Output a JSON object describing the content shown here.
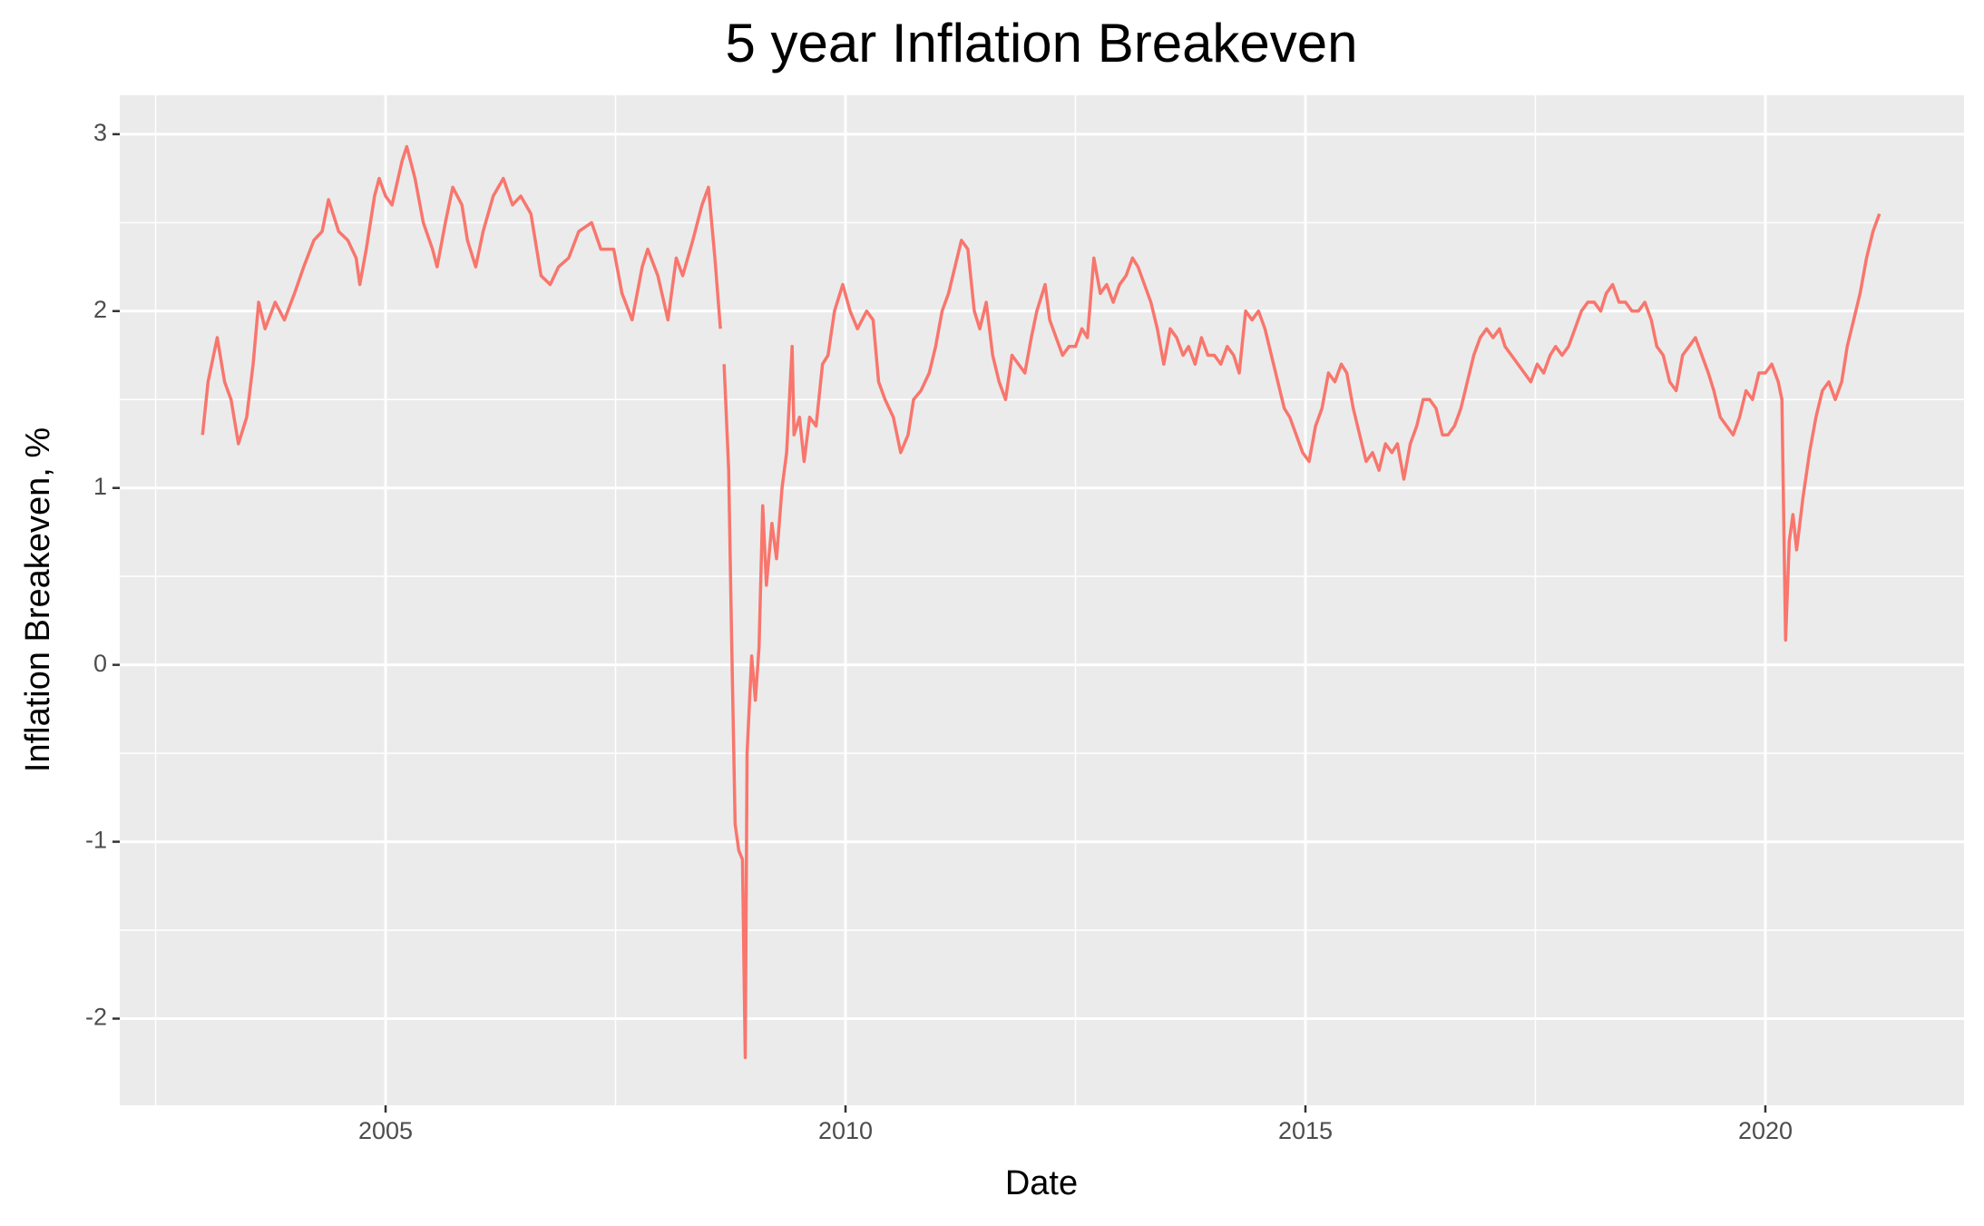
{
  "chart_data": {
    "type": "line",
    "title": "5 year Inflation Breakeven",
    "x_label": "Date",
    "y_label": "Inflation Breakeven, %",
    "color": "#F8766D",
    "grid": true,
    "xlim": [
      2002.11,
      2022.16
    ],
    "xticks": [
      2005,
      2010,
      2015,
      2020
    ],
    "ylim": [
      -2.49,
      3.22
    ],
    "yticks": [
      -2,
      -1,
      0,
      1,
      2,
      3
    ],
    "x": [
      2003.01,
      2003.07,
      2003.17,
      2003.25,
      2003.32,
      2003.4,
      2003.49,
      2003.56,
      2003.62,
      2003.69,
      2003.8,
      2003.9,
      2004.01,
      2004.11,
      2004.22,
      2004.31,
      2004.38,
      2004.49,
      2004.59,
      2004.68,
      2004.72,
      2004.79,
      2004.88,
      2004.93,
      2005.0,
      2005.07,
      2005.18,
      2005.23,
      2005.32,
      2005.41,
      2005.51,
      2005.56,
      2005.65,
      2005.73,
      2005.83,
      2005.89,
      2005.98,
      2006.06,
      2006.17,
      2006.28,
      2006.38,
      2006.47,
      2006.58,
      2006.69,
      2006.79,
      2006.88,
      2006.99,
      2007.1,
      2007.24,
      2007.34,
      2007.48,
      2007.57,
      2007.68,
      2007.79,
      2007.85,
      2007.96,
      2008.07,
      2008.16,
      2008.23,
      2008.34,
      2008.44,
      2008.51,
      2008.58,
      2008.64,
      2008.66,
      2008.68,
      2008.73,
      2008.76,
      2008.8,
      2008.84,
      2008.88,
      2008.91,
      2008.93,
      2008.98,
      2009.02,
      2009.06,
      2009.1,
      2009.14,
      2009.2,
      2009.25,
      2009.31,
      2009.36,
      2009.42,
      2009.44,
      2009.5,
      2009.55,
      2009.61,
      2009.68,
      2009.75,
      2009.81,
      2009.88,
      2009.97,
      2010.05,
      2010.13,
      2010.23,
      2010.3,
      2010.36,
      2010.43,
      2010.52,
      2010.6,
      2010.68,
      2010.74,
      2010.82,
      2010.91,
      2010.98,
      2011.05,
      2011.12,
      2011.19,
      2011.26,
      2011.33,
      2011.4,
      2011.46,
      2011.53,
      2011.6,
      2011.67,
      2011.74,
      2011.81,
      2011.88,
      2011.95,
      2012.02,
      2012.08,
      2012.17,
      2012.22,
      2012.29,
      2012.36,
      2012.43,
      2012.5,
      2012.57,
      2012.63,
      2012.7,
      2012.77,
      2012.84,
      2012.91,
      2012.98,
      2013.05,
      2013.12,
      2013.18,
      2013.25,
      2013.32,
      2013.39,
      2013.46,
      2013.53,
      2013.6,
      2013.67,
      2013.73,
      2013.8,
      2013.87,
      2013.94,
      2014.01,
      2014.08,
      2014.15,
      2014.22,
      2014.28,
      2014.35,
      2014.42,
      2014.49,
      2014.56,
      2014.63,
      2014.7,
      2014.77,
      2014.83,
      2014.9,
      2014.97,
      2015.04,
      2015.11,
      2015.18,
      2015.25,
      2015.32,
      2015.39,
      2015.45,
      2015.52,
      2015.59,
      2015.66,
      2015.73,
      2015.8,
      2015.87,
      2015.94,
      2016.0,
      2016.07,
      2016.14,
      2016.21,
      2016.28,
      2016.35,
      2016.42,
      2016.49,
      2016.55,
      2016.62,
      2016.69,
      2016.76,
      2016.83,
      2016.9,
      2016.97,
      2017.04,
      2017.11,
      2017.17,
      2017.24,
      2017.31,
      2017.38,
      2017.45,
      2017.52,
      2017.59,
      2017.66,
      2017.72,
      2017.79,
      2017.86,
      2017.93,
      2018.0,
      2018.07,
      2018.14,
      2018.21,
      2018.27,
      2018.34,
      2018.41,
      2018.48,
      2018.55,
      2018.62,
      2018.69,
      2018.76,
      2018.82,
      2018.89,
      2018.96,
      2019.03,
      2019.1,
      2019.17,
      2019.24,
      2019.31,
      2019.38,
      2019.44,
      2019.51,
      2019.58,
      2019.65,
      2019.72,
      2019.79,
      2019.86,
      2019.93,
      2020.0,
      2020.07,
      2020.14,
      2020.18,
      2020.22,
      2020.26,
      2020.3,
      2020.34,
      2020.41,
      2020.48,
      2020.55,
      2020.62,
      2020.69,
      2020.76,
      2020.83,
      2020.89,
      2020.96,
      2021.03,
      2021.1,
      2021.17,
      2021.24
    ],
    "values": [
      1.3,
      1.6,
      1.85,
      1.6,
      1.5,
      1.25,
      1.4,
      1.7,
      2.05,
      1.9,
      2.05,
      1.95,
      2.1,
      2.25,
      2.4,
      2.45,
      2.63,
      2.45,
      2.4,
      2.3,
      2.15,
      2.35,
      2.65,
      2.75,
      2.65,
      2.6,
      2.85,
      2.93,
      2.75,
      2.5,
      2.35,
      2.25,
      2.5,
      2.7,
      2.6,
      2.4,
      2.25,
      2.45,
      2.65,
      2.75,
      2.6,
      2.65,
      2.55,
      2.2,
      2.15,
      2.25,
      2.3,
      2.45,
      2.5,
      2.35,
      2.35,
      2.1,
      1.95,
      2.25,
      2.35,
      2.2,
      1.95,
      2.3,
      2.2,
      2.4,
      2.6,
      2.7,
      2.3,
      1.9,
      null,
      1.7,
      1.1,
      0.2,
      -0.9,
      -1.05,
      -1.1,
      -2.22,
      -0.5,
      0.05,
      -0.2,
      0.1,
      0.9,
      0.45,
      0.8,
      0.6,
      1.0,
      1.2,
      1.8,
      1.3,
      1.4,
      1.15,
      1.4,
      1.35,
      1.7,
      1.75,
      2.0,
      2.15,
      2.0,
      1.9,
      2.0,
      1.95,
      1.6,
      1.5,
      1.4,
      1.2,
      1.3,
      1.5,
      1.55,
      1.65,
      1.8,
      2.0,
      2.1,
      2.25,
      2.4,
      2.35,
      2.0,
      1.9,
      2.05,
      1.75,
      1.6,
      1.5,
      1.75,
      1.7,
      1.65,
      1.85,
      2.0,
      2.15,
      1.95,
      1.85,
      1.75,
      1.8,
      1.8,
      1.9,
      1.85,
      2.3,
      2.1,
      2.15,
      2.05,
      2.15,
      2.2,
      2.3,
      2.25,
      2.15,
      2.05,
      1.9,
      1.7,
      1.9,
      1.85,
      1.75,
      1.8,
      1.7,
      1.85,
      1.75,
      1.75,
      1.7,
      1.8,
      1.75,
      1.65,
      2.0,
      1.95,
      2.0,
      1.9,
      1.75,
      1.6,
      1.45,
      1.4,
      1.3,
      1.2,
      1.15,
      1.35,
      1.45,
      1.65,
      1.6,
      1.7,
      1.65,
      1.45,
      1.3,
      1.15,
      1.2,
      1.1,
      1.25,
      1.2,
      1.25,
      1.05,
      1.25,
      1.35,
      1.5,
      1.5,
      1.45,
      1.3,
      1.3,
      1.35,
      1.45,
      1.6,
      1.75,
      1.85,
      1.9,
      1.85,
      1.9,
      1.8,
      1.75,
      1.7,
      1.65,
      1.6,
      1.7,
      1.65,
      1.75,
      1.8,
      1.75,
      1.8,
      1.9,
      2.0,
      2.05,
      2.05,
      2.0,
      2.1,
      2.15,
      2.05,
      2.05,
      2.0,
      2.0,
      2.05,
      1.95,
      1.8,
      1.75,
      1.6,
      1.55,
      1.75,
      1.8,
      1.85,
      1.75,
      1.65,
      1.55,
      1.4,
      1.35,
      1.3,
      1.4,
      1.55,
      1.5,
      1.65,
      1.65,
      1.7,
      1.6,
      1.5,
      0.14,
      0.7,
      0.85,
      0.65,
      0.95,
      1.2,
      1.4,
      1.55,
      1.6,
      1.5,
      1.6,
      1.8,
      1.95,
      2.1,
      2.3,
      2.45,
      2.55
    ]
  }
}
